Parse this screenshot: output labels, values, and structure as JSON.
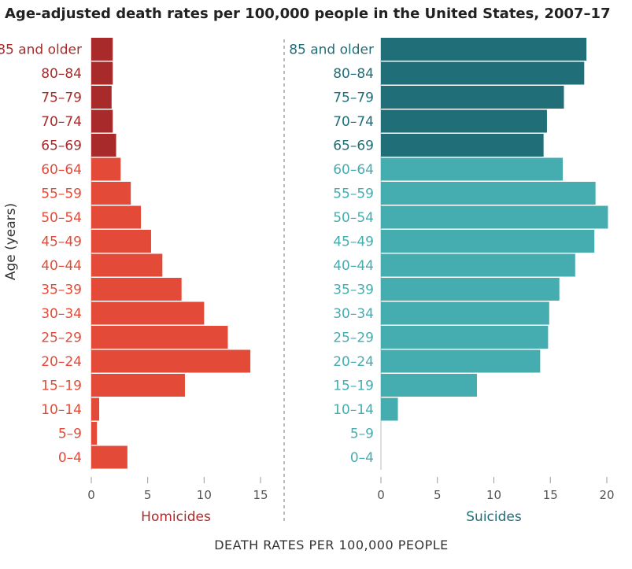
{
  "chart_data": {
    "type": "bar",
    "orientation": "horizontal",
    "title": "Age-adjusted death rates per 100,000 people in the United States, 2007–17",
    "xlabel": "DEATH RATES PER 100,000 PEOPLE",
    "ylabel": "Age (years)",
    "categories": [
      "85 and older",
      "80–84",
      "75–79",
      "70–74",
      "65–69",
      "60–64",
      "55–59",
      "50–54",
      "45–49",
      "40–44",
      "35–39",
      "30–34",
      "25–29",
      "20–24",
      "15–19",
      "10–14",
      "5–9",
      "0–4"
    ],
    "panels": [
      {
        "name": "Homicides",
        "xlim": [
          0,
          15
        ],
        "ticks": [
          0,
          5,
          10,
          15
        ],
        "values": [
          1.9,
          1.9,
          1.8,
          1.9,
          2.2,
          2.6,
          3.5,
          4.4,
          5.3,
          6.3,
          8.0,
          10.0,
          12.1,
          14.1,
          8.3,
          0.7,
          0.5,
          3.2
        ],
        "color_older": "#a82a2a",
        "color_younger": "#e34b38",
        "label_color": "#b02a2a"
      },
      {
        "name": "Suicides",
        "xlim": [
          0,
          20
        ],
        "ticks": [
          0,
          5,
          10,
          15,
          20
        ],
        "values": [
          18.2,
          18.0,
          16.2,
          14.7,
          14.4,
          16.1,
          19.0,
          20.1,
          18.9,
          17.2,
          15.8,
          14.9,
          14.8,
          14.1,
          8.5,
          1.5,
          0,
          0
        ],
        "color_older": "#1f6e78",
        "color_younger": "#45adb0",
        "label_color": "#1f6e78"
      }
    ],
    "older_group_categories": [
      "85 and older",
      "80–84",
      "75–79",
      "70–74",
      "65–69"
    ]
  }
}
